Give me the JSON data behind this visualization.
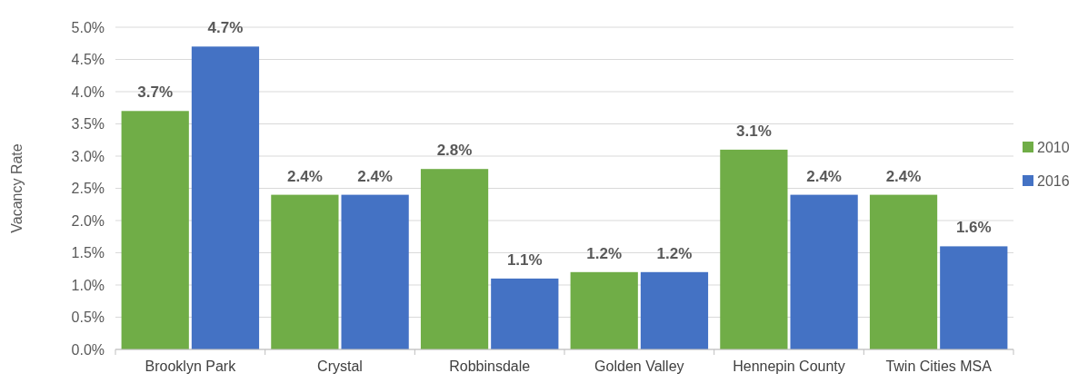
{
  "chart_data": {
    "type": "bar",
    "ylabel": "Vacancy Rate",
    "categories": [
      "Brooklyn Park",
      "Crystal",
      "Robbinsdale",
      "Golden Valley",
      "Hennepin County",
      "Twin Cities MSA"
    ],
    "series": [
      {
        "name": "2010",
        "color": "#70ad47",
        "values": [
          3.7,
          2.4,
          2.8,
          1.2,
          3.1,
          2.4
        ],
        "value_labels": [
          "3.7%",
          "2.4%",
          "2.8%",
          "1.2%",
          "3.1%",
          "2.4%"
        ]
      },
      {
        "name": "2016",
        "color": "#4472c4",
        "values": [
          4.7,
          2.4,
          1.1,
          1.2,
          2.4,
          1.6
        ],
        "value_labels": [
          "4.7%",
          "2.4%",
          "1.1%",
          "1.2%",
          "2.4%",
          "1.6%"
        ]
      }
    ],
    "ylim": [
      0,
      5
    ],
    "yticks": [
      {
        "value": 0,
        "label": "0.0%"
      },
      {
        "value": 0.5,
        "label": "0.5%"
      },
      {
        "value": 1,
        "label": "1.0%"
      },
      {
        "value": 1.5,
        "label": "1.5%"
      },
      {
        "value": 2,
        "label": "2.0%"
      },
      {
        "value": 2.5,
        "label": "2.5%"
      },
      {
        "value": 3,
        "label": "3.0%"
      },
      {
        "value": 3.5,
        "label": "3.5%"
      },
      {
        "value": 4,
        "label": "4.0%"
      },
      {
        "value": 4.5,
        "label": "4.5%"
      },
      {
        "value": 5,
        "label": "5.0%"
      }
    ],
    "grid": "y",
    "legend": "right"
  }
}
